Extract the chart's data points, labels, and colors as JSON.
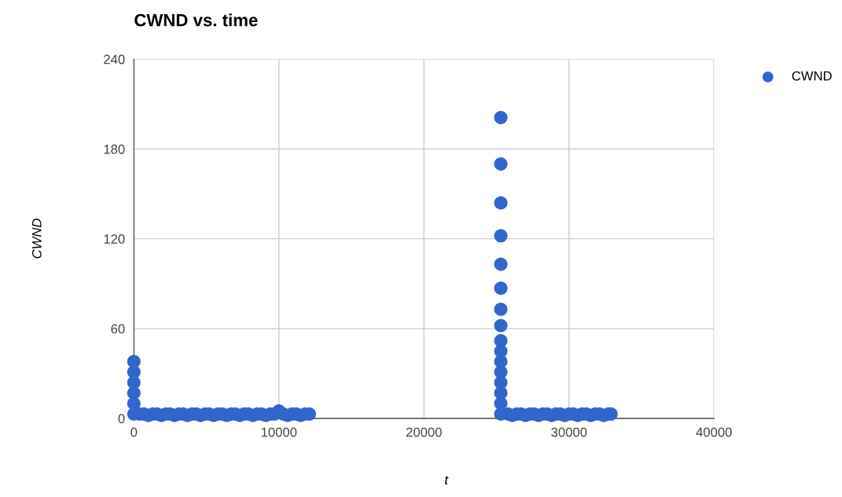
{
  "chart_data": {
    "type": "scatter",
    "title": "CWND vs. time",
    "xlabel": "t",
    "ylabel": "CWND",
    "xlim": [
      0,
      40000
    ],
    "ylim": [
      0,
      240
    ],
    "xticks": [
      0,
      10000,
      20000,
      30000,
      40000
    ],
    "yticks": [
      0,
      60,
      120,
      180,
      240
    ],
    "grid": true,
    "legend": "top right",
    "marker": "circle",
    "series": [
      {
        "name": "CWND",
        "color": "#3366cc",
        "x": [
          0,
          0,
          0,
          0,
          0,
          0,
          400,
          700,
          1000,
          1300,
          1600,
          1900,
          2200,
          2500,
          2800,
          3100,
          3400,
          3700,
          4000,
          4300,
          4600,
          4900,
          5200,
          5500,
          5800,
          6100,
          6400,
          6700,
          7000,
          7300,
          7600,
          7900,
          8200,
          8500,
          8800,
          9100,
          9400,
          9700,
          10000,
          10300,
          10600,
          10900,
          11200,
          11500,
          11800,
          12100,
          25300,
          25300,
          25300,
          25300,
          25300,
          25300,
          25300,
          25300,
          25300,
          25300,
          25300,
          25300,
          25300,
          25300,
          25300,
          25300,
          25800,
          26100,
          26400,
          26700,
          27000,
          27300,
          27600,
          27900,
          28200,
          28500,
          28800,
          29100,
          29400,
          29700,
          30000,
          30300,
          30600,
          30900,
          31200,
          31500,
          31800,
          32100,
          32400,
          32700,
          32900
        ],
        "values": [
          38,
          31,
          24,
          17,
          10,
          3,
          3,
          3,
          2,
          3,
          3,
          2,
          3,
          3,
          2,
          3,
          3,
          2,
          3,
          3,
          2,
          3,
          3,
          2,
          3,
          3,
          2,
          3,
          3,
          2,
          3,
          3,
          2,
          3,
          3,
          2,
          3,
          3,
          5,
          3,
          2,
          3,
          3,
          2,
          3,
          3,
          201,
          170,
          144,
          122,
          103,
          87,
          73,
          62,
          52,
          45,
          38,
          31,
          24,
          17,
          10,
          3,
          3,
          2,
          3,
          3,
          2,
          3,
          3,
          2,
          3,
          3,
          2,
          3,
          3,
          2,
          3,
          3,
          2,
          3,
          3,
          2,
          3,
          3,
          2,
          3,
          3
        ]
      }
    ]
  }
}
